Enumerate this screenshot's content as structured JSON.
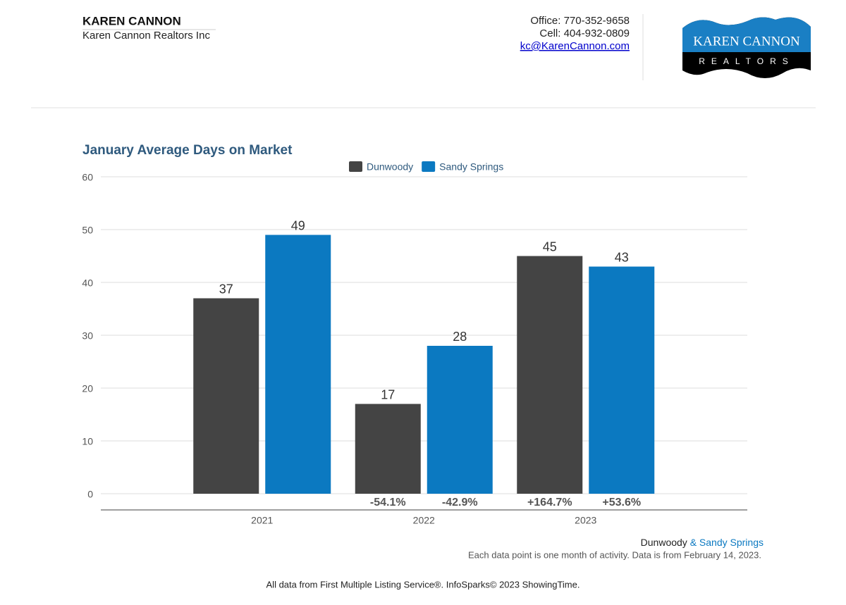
{
  "header": {
    "name": "KAREN CANNON",
    "company": "Karen Cannon Realtors Inc",
    "office": "Office: 770-352-9658",
    "cell": "Cell: 404-932-0809",
    "email": "kc@KarenCannon.com",
    "logo_top": "KAREN CANNON",
    "logo_bottom": "REALTORS"
  },
  "chart_data": {
    "type": "bar",
    "title": "January Average Days on Market",
    "categories": [
      "2021",
      "2022",
      "2023"
    ],
    "series": [
      {
        "name": "Dunwoody",
        "color": "#444444",
        "values": [
          37,
          17,
          45
        ],
        "change_labels": [
          null,
          "-54.1%",
          "+164.7%"
        ]
      },
      {
        "name": "Sandy Springs",
        "color": "#0b79c1",
        "values": [
          49,
          28,
          43
        ],
        "change_labels": [
          null,
          "-42.9%",
          "+53.6%"
        ]
      }
    ],
    "ylim": [
      0,
      60
    ],
    "yticks": [
      0,
      10,
      20,
      30,
      40,
      50,
      60
    ],
    "grid": true,
    "legend": "top"
  },
  "footer": {
    "area_first": "Dunwoody",
    "area_second": "& Sandy Springs",
    "note": "Each data point is one month of activity. Data is from February 14, 2023.",
    "source": "All data from First Multiple Listing Service®. InfoSparks© 2023 ShowingTime."
  }
}
